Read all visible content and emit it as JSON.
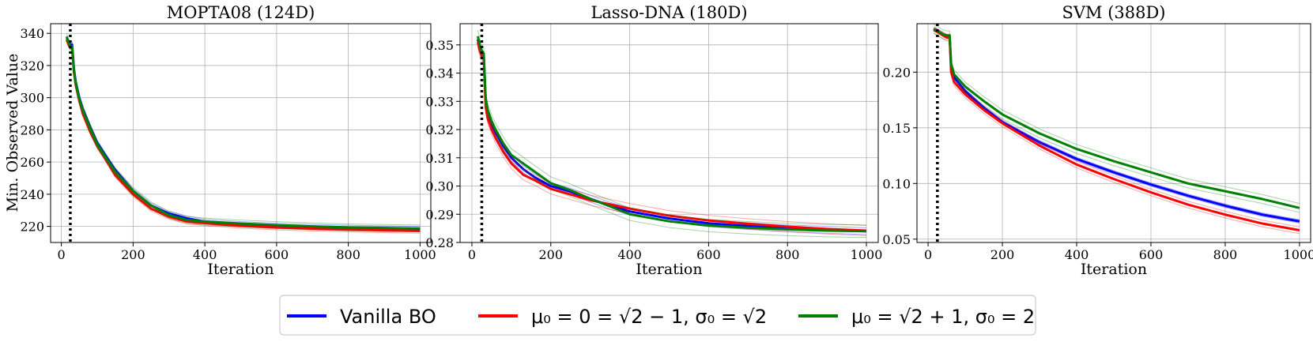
{
  "figure": {
    "ylabel": "Min. Observed Value",
    "legend": {
      "placement": "bottom-center",
      "entries": [
        {
          "label": "Vanilla BO",
          "color": "#0000ff"
        },
        {
          "label": "μ₀ = 0 = √2 − 1, σ₀ = √2",
          "color": "#ff0000"
        },
        {
          "label": "μ₀ = √2 + 1, σ₀ = 2",
          "color": "#008000"
        }
      ]
    }
  },
  "chart_data": [
    {
      "type": "line",
      "title": "MOPTA08 (124D)",
      "xlabel": "Iteration",
      "ylabel": "Min. Observed Value",
      "xlim": [
        -30,
        1030
      ],
      "ylim": [
        210,
        346
      ],
      "xticks": [
        0,
        200,
        400,
        600,
        800,
        1000
      ],
      "yticks": [
        220,
        240,
        260,
        280,
        300,
        320,
        340
      ],
      "grid": true,
      "vline_x": 25,
      "x": [
        15,
        20,
        25,
        30,
        35,
        40,
        50,
        60,
        80,
        100,
        120,
        150,
        200,
        250,
        300,
        350,
        400,
        500,
        600,
        700,
        800,
        900,
        1000
      ],
      "series": [
        {
          "name": "Vanilla BO",
          "color": "#0000ff",
          "values": [
            337,
            335,
            333,
            333,
            318,
            310,
            300,
            293,
            282,
            272,
            265,
            255,
            242,
            233,
            228,
            225,
            223,
            221.5,
            220.5,
            219.8,
            219.3,
            218.9,
            218.5
          ]
        },
        {
          "name": "μ₀ = 0 = √2 − 1, σ₀ = √2",
          "color": "#ff0000",
          "values": [
            336,
            333,
            331,
            331,
            316,
            308,
            298,
            290,
            279,
            270,
            263,
            252,
            240,
            231,
            226,
            223,
            222,
            220.3,
            219.3,
            218.6,
            218.0,
            217.6,
            217.2
          ]
        },
        {
          "name": "μ₀ = √2 + 1, σ₀ = 2",
          "color": "#008000",
          "values": [
            338,
            334,
            332,
            332,
            317,
            309,
            299,
            292,
            281,
            271,
            264,
            254,
            242,
            233,
            227,
            224,
            223,
            221.8,
            220.8,
            220.0,
            219.4,
            219.0,
            218.7
          ]
        }
      ]
    },
    {
      "type": "line",
      "title": "Lasso-DNA (180D)",
      "xlabel": "Iteration",
      "ylim": [
        0.28,
        0.3575
      ],
      "xlim": [
        -30,
        1030
      ],
      "xticks": [
        0,
        200,
        400,
        600,
        800,
        1000
      ],
      "yticks": [
        0.28,
        0.29,
        0.3,
        0.31,
        0.32,
        0.33,
        0.34,
        0.35
      ],
      "grid": true,
      "vline_x": 25,
      "x": [
        15,
        20,
        25,
        30,
        35,
        40,
        50,
        60,
        80,
        100,
        130,
        160,
        200,
        250,
        300,
        350,
        400,
        500,
        600,
        700,
        800,
        900,
        1000
      ],
      "series": [
        {
          "name": "Vanilla BO",
          "color": "#0000ff",
          "values": [
            0.352,
            0.349,
            0.347,
            0.346,
            0.33,
            0.326,
            0.322,
            0.319,
            0.314,
            0.31,
            0.306,
            0.303,
            0.3,
            0.298,
            0.2955,
            0.293,
            0.291,
            0.2885,
            0.2868,
            0.2858,
            0.285,
            0.2845,
            0.284
          ]
        },
        {
          "name": "μ₀ = 0 = √2 − 1, σ₀ = √2",
          "color": "#ff0000",
          "values": [
            0.351,
            0.348,
            0.346,
            0.345,
            0.328,
            0.324,
            0.32,
            0.317,
            0.312,
            0.308,
            0.304,
            0.302,
            0.299,
            0.297,
            0.295,
            0.2935,
            0.292,
            0.2895,
            0.2878,
            0.2866,
            0.2856,
            0.2848,
            0.2842
          ]
        },
        {
          "name": "μ₀ = √2 + 1, σ₀ = 2",
          "color": "#008000",
          "values": [
            0.353,
            0.35,
            0.348,
            0.347,
            0.331,
            0.327,
            0.323,
            0.32,
            0.315,
            0.311,
            0.308,
            0.305,
            0.301,
            0.2985,
            0.2955,
            0.2928,
            0.29,
            0.2875,
            0.286,
            0.2852,
            0.2846,
            0.2842,
            0.284
          ]
        }
      ]
    },
    {
      "type": "line",
      "title": "SVM (388D)",
      "xlabel": "Iteration",
      "xlim": [
        -30,
        1030
      ],
      "ylim": [
        0.047,
        0.2435
      ],
      "xticks": [
        0,
        200,
        400,
        600,
        800,
        1000
      ],
      "yticks": [
        0.05,
        0.1,
        0.15,
        0.2
      ],
      "grid": true,
      "vline_x": 25,
      "x": [
        15,
        20,
        30,
        40,
        50,
        58,
        62,
        70,
        100,
        150,
        200,
        300,
        400,
        500,
        600,
        700,
        800,
        900,
        1000
      ],
      "series": [
        {
          "name": "Vanilla BO",
          "color": "#0000ff",
          "values": [
            0.238,
            0.238,
            0.236,
            0.234,
            0.232,
            0.232,
            0.205,
            0.195,
            0.183,
            0.168,
            0.155,
            0.137,
            0.122,
            0.11,
            0.099,
            0.089,
            0.08,
            0.072,
            0.066
          ]
        },
        {
          "name": "μ₀ = 0 = √2 − 1, σ₀ = √2",
          "color": "#ff0000",
          "values": [
            0.238,
            0.237,
            0.235,
            0.233,
            0.231,
            0.231,
            0.2,
            0.191,
            0.18,
            0.166,
            0.154,
            0.134,
            0.117,
            0.104,
            0.092,
            0.081,
            0.072,
            0.064,
            0.058
          ]
        },
        {
          "name": "μ₀ = √2 + 1, σ₀ = 2",
          "color": "#008000",
          "values": [
            0.239,
            0.238,
            0.236,
            0.234,
            0.233,
            0.233,
            0.207,
            0.198,
            0.187,
            0.174,
            0.162,
            0.145,
            0.131,
            0.12,
            0.11,
            0.1,
            0.093,
            0.086,
            0.078
          ]
        }
      ]
    }
  ]
}
